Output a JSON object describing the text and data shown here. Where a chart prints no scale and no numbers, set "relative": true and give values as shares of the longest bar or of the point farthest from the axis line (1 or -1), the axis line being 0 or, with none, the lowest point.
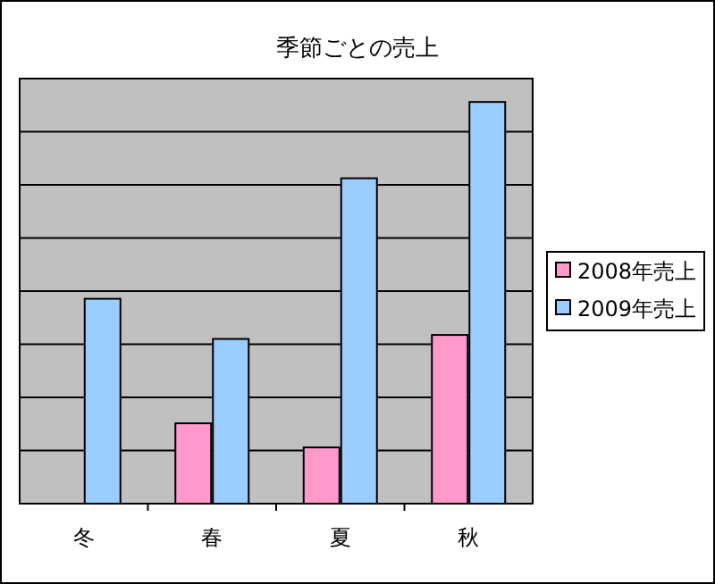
{
  "chart_data": {
    "type": "bar",
    "title": "季節ごとの売上",
    "categories": [
      "冬",
      "春",
      "夏",
      "秋"
    ],
    "relative": true,
    "grid": "y",
    "legend": "right",
    "series": [
      {
        "name": "2008年売上",
        "color": "#ff99cc",
        "values": [
          null,
          0.2,
          0.14,
          0.42
        ]
      },
      {
        "name": "2009年売上",
        "color": "#99ccff",
        "values": [
          0.51,
          0.41,
          0.81,
          1.0
        ]
      }
    ]
  }
}
